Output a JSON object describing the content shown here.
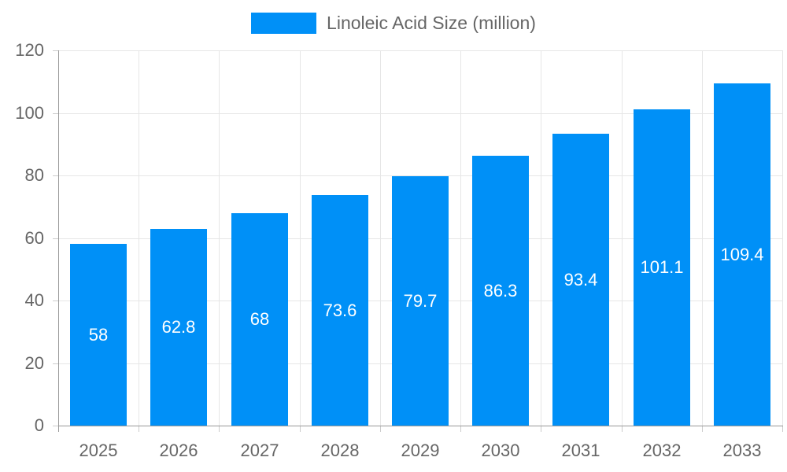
{
  "chart_data": {
    "type": "bar",
    "title": "",
    "legend_position": "top-center",
    "categories": [
      "2025",
      "2026",
      "2027",
      "2028",
      "2029",
      "2030",
      "2031",
      "2032",
      "2033"
    ],
    "series": [
      {
        "name": "Linoleic Acid Size (million)",
        "values": [
          58,
          62.8,
          68,
          73.6,
          79.7,
          86.3,
          93.4,
          101.1,
          109.4
        ],
        "color": "#0090f7"
      }
    ],
    "value_labels": [
      "58",
      "62.8",
      "68",
      "73.6",
      "79.7",
      "86.3",
      "93.4",
      "101.1",
      "109.4"
    ],
    "xlabel": "",
    "ylabel": "",
    "ylim": [
      0,
      120
    ],
    "yticks": [
      0,
      20,
      40,
      60,
      80,
      100,
      120
    ],
    "grid": {
      "horizontal": true,
      "vertical": true
    },
    "value_labels_inside_bars": true,
    "colors": {
      "bar": "#0090f7",
      "axis_line": "#999999",
      "grid_line": "#e6e6e6",
      "tick_mark": "#cccccc",
      "tick_label": "#666666",
      "value_label": "#ffffff",
      "legend_text": "#666666",
      "background": "#ffffff"
    }
  }
}
